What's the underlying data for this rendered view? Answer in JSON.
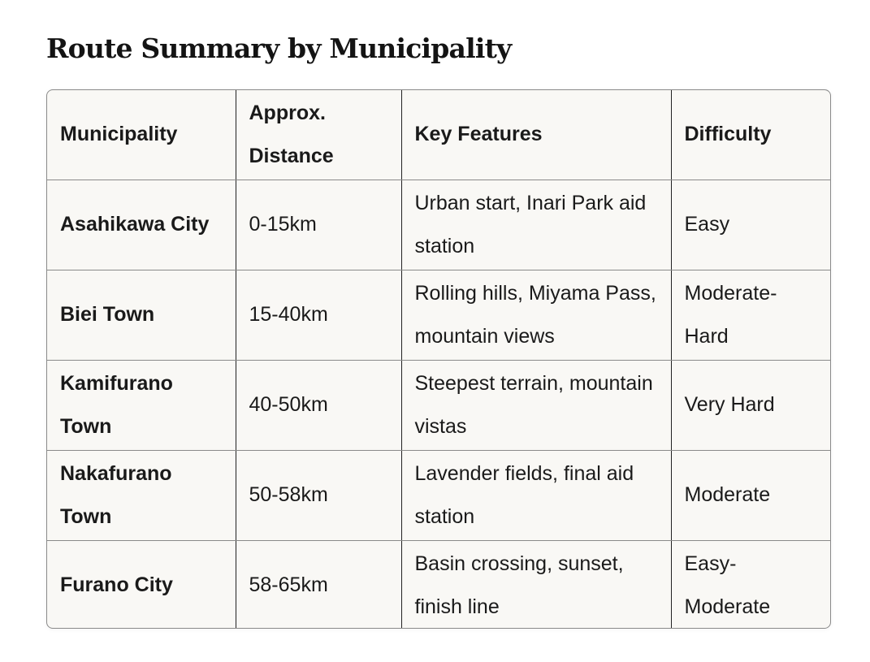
{
  "title": "Route Summary by Municipality",
  "table": {
    "headers": [
      "Municipality",
      "Approx. Distance",
      "Key Features",
      "Difficulty"
    ],
    "rows": [
      [
        "Asahikawa City",
        "0-15km",
        "Urban start, Inari Park aid station",
        "Easy"
      ],
      [
        "Biei Town",
        "15-40km",
        "Rolling hills, Miyama Pass, mountain views",
        "Moderate-Hard"
      ],
      [
        "Kamifurano Town",
        "40-50km",
        "Steepest terrain, mountain vistas",
        "Very Hard"
      ],
      [
        "Nakafurano Town",
        "50-58km",
        "Lavender fields, final aid station",
        "Moderate"
      ],
      [
        "Furano City",
        "58-65km",
        "Basin crossing, sunset, finish line",
        "Easy-Moderate"
      ]
    ]
  }
}
